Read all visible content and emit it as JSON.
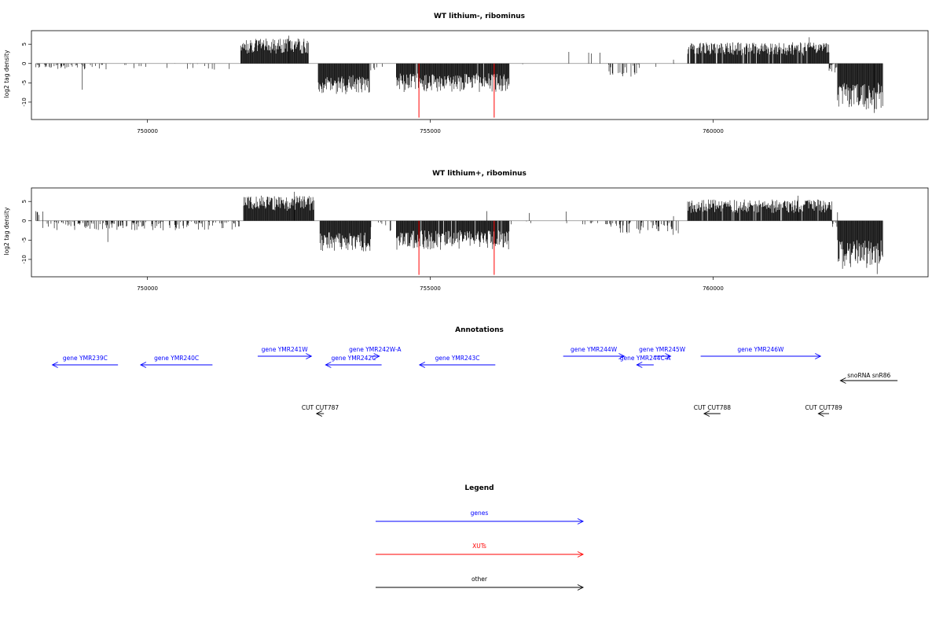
{
  "chart_data": [
    {
      "type": "bar",
      "title": "WT lithium-, ribominus",
      "ylabel": "log2 tag density",
      "xlim": [
        747950,
        763800
      ],
      "ylim": [
        -14.5,
        8.5
      ],
      "x_ticks": [
        750000,
        755000,
        760000
      ],
      "x_tick_labels": [
        "750000",
        "755000",
        "760000"
      ],
      "y_ticks": [
        5,
        0,
        -5,
        -10
      ],
      "y_tick_labels": [
        "5",
        "0",
        "-5",
        "-10"
      ],
      "red_markers": [
        {
          "x": 754800,
          "y": -14
        },
        {
          "x": 756130,
          "y": -14
        }
      ],
      "segments": [
        {
          "x0": 748030,
          "x1": 749250,
          "min": -1.5,
          "max": 0,
          "density": 0.35,
          "seed": 11,
          "spikes": [
            [
              748850,
              -6.8
            ]
          ]
        },
        {
          "x0": 749250,
          "x1": 751600,
          "min": -1.8,
          "max": 0,
          "density": 0.08,
          "seed": 12,
          "spikes": []
        },
        {
          "x0": 751650,
          "x1": 752850,
          "min": 2.5,
          "max": 6.5,
          "density": 1.0,
          "seed": 13,
          "spikes": [
            [
              752500,
              7.2
            ]
          ]
        },
        {
          "x0": 753020,
          "x1": 753930,
          "min": -8.0,
          "max": -3.0,
          "density": 1.0,
          "seed": 14,
          "spikes": []
        },
        {
          "x0": 753930,
          "x1": 754300,
          "min": -2.5,
          "max": 0,
          "density": 0.15,
          "seed": 15,
          "spikes": []
        },
        {
          "x0": 754400,
          "x1": 756400,
          "min": -7.5,
          "max": -2.5,
          "density": 0.95,
          "seed": 16,
          "spikes": []
        },
        {
          "x0": 756400,
          "x1": 757600,
          "min": -1.0,
          "max": 0,
          "density": 0.03,
          "seed": 17,
          "spikes": [
            [
              757450,
              3.0
            ],
            [
              757800,
              2.8
            ],
            [
              757850,
              2.6
            ],
            [
              758000,
              2.8
            ]
          ]
        },
        {
          "x0": 758150,
          "x1": 758650,
          "min": -3.5,
          "max": 0,
          "density": 0.35,
          "seed": 18,
          "spikes": []
        },
        {
          "x0": 758650,
          "x1": 759350,
          "min": -1.5,
          "max": 0,
          "density": 0.05,
          "seed": 19,
          "spikes": [
            [
              759300,
              1.0
            ]
          ]
        },
        {
          "x0": 759550,
          "x1": 762050,
          "min": 2.0,
          "max": 5.5,
          "density": 0.95,
          "seed": 20,
          "spikes": [
            [
              761700,
              6.8
            ]
          ]
        },
        {
          "x0": 762050,
          "x1": 762200,
          "min": -2.5,
          "max": 0,
          "density": 0.5,
          "seed": 21,
          "spikes": []
        },
        {
          "x0": 762200,
          "x1": 763000,
          "min": -12.0,
          "max": -5.0,
          "density": 1.0,
          "seed": 22,
          "spikes": [
            [
              762850,
              -12.8
            ]
          ]
        }
      ]
    },
    {
      "type": "bar",
      "title": "WT lithium+, ribominus",
      "ylabel": "log2 tag density",
      "xlim": [
        747950,
        763800
      ],
      "ylim": [
        -14.5,
        8.5
      ],
      "x_ticks": [
        750000,
        755000,
        760000
      ],
      "x_tick_labels": [
        "750000",
        "755000",
        "760000"
      ],
      "y_ticks": [
        5,
        0,
        -5,
        -10
      ],
      "y_tick_labels": [
        "5",
        "0",
        "-5",
        "-10"
      ],
      "red_markers": [
        {
          "x": 754800,
          "y": -14
        },
        {
          "x": 756130,
          "y": -14
        }
      ],
      "segments": [
        {
          "x0": 748030,
          "x1": 748200,
          "min": 1.0,
          "max": 2.5,
          "density": 0.08,
          "seed": 31,
          "spikes": [
            [
              748030,
              2.5
            ],
            [
              748150,
              2.4
            ]
          ]
        },
        {
          "x0": 748150,
          "x1": 751650,
          "min": -2.5,
          "max": 0,
          "density": 0.4,
          "seed": 32,
          "spikes": [
            [
              749300,
              -5.5
            ]
          ]
        },
        {
          "x0": 751700,
          "x1": 752950,
          "min": 2.5,
          "max": 6.5,
          "density": 1.0,
          "seed": 33,
          "spikes": [
            [
              752600,
              7.5
            ]
          ]
        },
        {
          "x0": 753050,
          "x1": 753950,
          "min": -8.0,
          "max": -3.0,
          "density": 1.0,
          "seed": 34,
          "spikes": []
        },
        {
          "x0": 753950,
          "x1": 754350,
          "min": -3.5,
          "max": 0,
          "density": 0.3,
          "seed": 35,
          "spikes": []
        },
        {
          "x0": 754400,
          "x1": 756400,
          "min": -7.5,
          "max": -2.5,
          "density": 0.95,
          "seed": 36,
          "spikes": [
            [
              756000,
              2.5
            ]
          ]
        },
        {
          "x0": 756400,
          "x1": 758100,
          "min": -1.0,
          "max": 0,
          "density": 0.05,
          "seed": 37,
          "spikes": [
            [
              756750,
              2.0
            ],
            [
              757400,
              2.4
            ]
          ]
        },
        {
          "x0": 758100,
          "x1": 759400,
          "min": -3.8,
          "max": 0,
          "density": 0.4,
          "seed": 38,
          "spikes": [
            [
              759300,
              1.2
            ]
          ]
        },
        {
          "x0": 759550,
          "x1": 762100,
          "min": 2.0,
          "max": 5.5,
          "density": 0.95,
          "seed": 39,
          "spikes": [
            [
              761500,
              6.5
            ]
          ]
        },
        {
          "x0": 762100,
          "x1": 762200,
          "min": -2.0,
          "max": 0,
          "density": 0.5,
          "seed": 40,
          "spikes": [
            [
              762200,
              2.2
            ]
          ]
        },
        {
          "x0": 762200,
          "x1": 763000,
          "min": -12.5,
          "max": -5.0,
          "density": 1.0,
          "seed": 41,
          "spikes": [
            [
              762900,
              -13.8
            ]
          ]
        }
      ]
    }
  ],
  "annotations": {
    "title": "Annotations",
    "colors": {
      "gene": "#0000ff",
      "xut": "#ff0000",
      "other": "#000000"
    },
    "features": [
      {
        "label": "gene YMR239C",
        "start": 748320,
        "end": 749480,
        "strand": "-",
        "row": 2,
        "kind": "gene"
      },
      {
        "label": "gene YMR240C",
        "start": 749880,
        "end": 751150,
        "strand": "-",
        "row": 2,
        "kind": "gene"
      },
      {
        "label": "gene YMR241W",
        "start": 751950,
        "end": 752900,
        "strand": "+",
        "row": 1,
        "kind": "gene"
      },
      {
        "label": "gene YMR242W-A",
        "start": 753950,
        "end": 754100,
        "strand": "+",
        "row": 0,
        "kind": "gene"
      },
      {
        "label": "gene YMR242C",
        "start": 753150,
        "end": 754140,
        "strand": "-",
        "row": 2,
        "kind": "gene"
      },
      {
        "label": "gene YMR243C",
        "start": 754810,
        "end": 756150,
        "strand": "-",
        "row": 2,
        "kind": "gene"
      },
      {
        "label": "gene YMR244W",
        "start": 757350,
        "end": 758430,
        "strand": "+",
        "row": 1,
        "kind": "gene"
      },
      {
        "label": "gene YMR245W",
        "start": 758950,
        "end": 759250,
        "strand": "+",
        "row": 0,
        "kind": "gene"
      },
      {
        "label": "gene YMR244C-A",
        "start": 758650,
        "end": 758950,
        "strand": "-",
        "row": 2,
        "kind": "gene"
      },
      {
        "label": "gene YMR246W",
        "start": 759780,
        "end": 761900,
        "strand": "+",
        "row": 1,
        "kind": "gene"
      },
      {
        "label": "snoRNA snR86",
        "start": 762250,
        "end": 763260,
        "strand": "-",
        "row": 3,
        "kind": "other"
      },
      {
        "label": "CUT CUT787",
        "start": 752990,
        "end": 753120,
        "strand": "-",
        "row": 4,
        "kind": "other"
      },
      {
        "label": "CUT CUT788",
        "start": 759840,
        "end": 760130,
        "strand": "-",
        "row": 4,
        "kind": "other"
      },
      {
        "label": "CUT CUT789",
        "start": 761860,
        "end": 762050,
        "strand": "-",
        "row": 4,
        "kind": "other"
      }
    ]
  },
  "legend": {
    "title": "Legend",
    "items": [
      {
        "label": "genes",
        "color": "#0000ff"
      },
      {
        "label": "XUTs",
        "color": "#ff0000"
      },
      {
        "label": "other",
        "color": "#000000"
      }
    ]
  }
}
